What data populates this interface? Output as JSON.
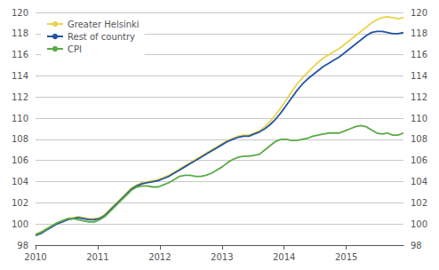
{
  "chart_data": {
    "type": "line",
    "title": "",
    "x": [
      2010,
      2010.0858,
      2010.1716,
      2010.2574,
      2010.3432,
      2010.429,
      2010.5148,
      2010.6006,
      2010.6864,
      2010.7722,
      2010.858,
      2010.9438,
      2011.0296,
      2011.1154,
      2011.2012,
      2011.287,
      2011.3728,
      2011.4586,
      2011.5443,
      2011.6301,
      2011.7159,
      2011.8017,
      2011.8875,
      2011.9733,
      2012.0591,
      2012.1449,
      2012.2307,
      2012.3165,
      2012.4023,
      2012.4881,
      2012.5739,
      2012.6597,
      2012.7455,
      2012.8313,
      2012.9171,
      2013.0029,
      2013.0887,
      2013.1745,
      2013.2603,
      2013.3461,
      2013.4319,
      2013.5177,
      2013.6035,
      2013.6893,
      2013.7751,
      2013.8609,
      2013.9467,
      2014.0325,
      2014.1183,
      2014.2041,
      2014.2899,
      2014.3757,
      2014.4614,
      2014.5472,
      2014.633,
      2014.7188,
      2014.8046,
      2014.8904,
      2014.9762,
      2015.062,
      2015.1478,
      2015.2336,
      2015.3194,
      2015.4052,
      2015.491,
      2015.5768,
      2015.6626,
      2015.7484,
      2015.8342,
      2015.92
    ],
    "series": [
      {
        "name": "Greater Helsinki",
        "color": "#e8d44d",
        "values": [
          99.0,
          99.25,
          99.5,
          99.8,
          100.1,
          100.3,
          100.5,
          100.6,
          100.7,
          100.6,
          100.5,
          100.5,
          100.6,
          100.9,
          101.4,
          101.9,
          102.4,
          102.9,
          103.4,
          103.7,
          103.9,
          104.0,
          104.1,
          104.2,
          104.4,
          104.6,
          104.9,
          105.2,
          105.5,
          105.8,
          106.1,
          106.4,
          106.7,
          107.0,
          107.3,
          107.6,
          107.9,
          108.1,
          108.3,
          108.4,
          108.4,
          108.6,
          108.8,
          109.2,
          109.7,
          110.3,
          111.0,
          111.7,
          112.5,
          113.2,
          113.8,
          114.3,
          114.8,
          115.3,
          115.7,
          116.0,
          116.3,
          116.6,
          117.0,
          117.4,
          117.8,
          118.2,
          118.6,
          119.0,
          119.3,
          119.5,
          119.6,
          119.5,
          119.4,
          119.5
        ]
      },
      {
        "name": "Rest of country",
        "color": "#2255a4",
        "values": [
          98.9,
          99.1,
          99.4,
          99.7,
          100.0,
          100.2,
          100.4,
          100.5,
          100.6,
          100.5,
          100.4,
          100.4,
          100.5,
          100.8,
          101.3,
          101.8,
          102.3,
          102.8,
          103.3,
          103.6,
          103.8,
          103.9,
          104.0,
          104.1,
          104.3,
          104.5,
          104.8,
          105.1,
          105.4,
          105.7,
          106.0,
          106.3,
          106.6,
          106.9,
          107.2,
          107.5,
          107.8,
          108.0,
          108.2,
          108.3,
          108.3,
          108.5,
          108.7,
          109.0,
          109.4,
          109.9,
          110.5,
          111.2,
          111.9,
          112.6,
          113.2,
          113.7,
          114.1,
          114.5,
          114.9,
          115.2,
          115.5,
          115.8,
          116.2,
          116.6,
          117.0,
          117.4,
          117.8,
          118.1,
          118.2,
          118.2,
          118.1,
          118.0,
          118.0,
          118.1
        ]
      },
      {
        "name": "CPI",
        "color": "#5aaa46",
        "values": [
          99.0,
          99.2,
          99.5,
          99.8,
          100.1,
          100.3,
          100.5,
          100.5,
          100.4,
          100.3,
          100.2,
          100.2,
          100.4,
          100.7,
          101.2,
          101.7,
          102.2,
          102.7,
          103.2,
          103.5,
          103.6,
          103.6,
          103.5,
          103.5,
          103.7,
          103.9,
          104.2,
          104.5,
          104.6,
          104.6,
          104.5,
          104.5,
          104.6,
          104.8,
          105.1,
          105.4,
          105.8,
          106.1,
          106.3,
          106.4,
          106.4,
          106.5,
          106.6,
          107.0,
          107.4,
          107.8,
          108.0,
          108.0,
          107.9,
          107.9,
          108.0,
          108.1,
          108.3,
          108.4,
          108.5,
          108.6,
          108.6,
          108.6,
          108.8,
          109.0,
          109.2,
          109.3,
          109.2,
          108.9,
          108.6,
          108.5,
          108.6,
          108.4,
          108.4,
          108.6
        ]
      }
    ],
    "xlim": [
      2010,
      2015.92
    ],
    "xticks": [
      2010,
      2011,
      2012,
      2013,
      2014,
      2015
    ],
    "ylim": [
      98,
      120
    ],
    "yticks": [
      98,
      100,
      102,
      104,
      106,
      108,
      110,
      112,
      114,
      116,
      118,
      120
    ],
    "y2lim": [
      98,
      120
    ],
    "y2ticks": [
      98,
      100,
      102,
      104,
      106,
      108,
      110,
      112,
      114,
      116,
      118,
      120
    ],
    "grid": true,
    "legend": "upper left"
  }
}
